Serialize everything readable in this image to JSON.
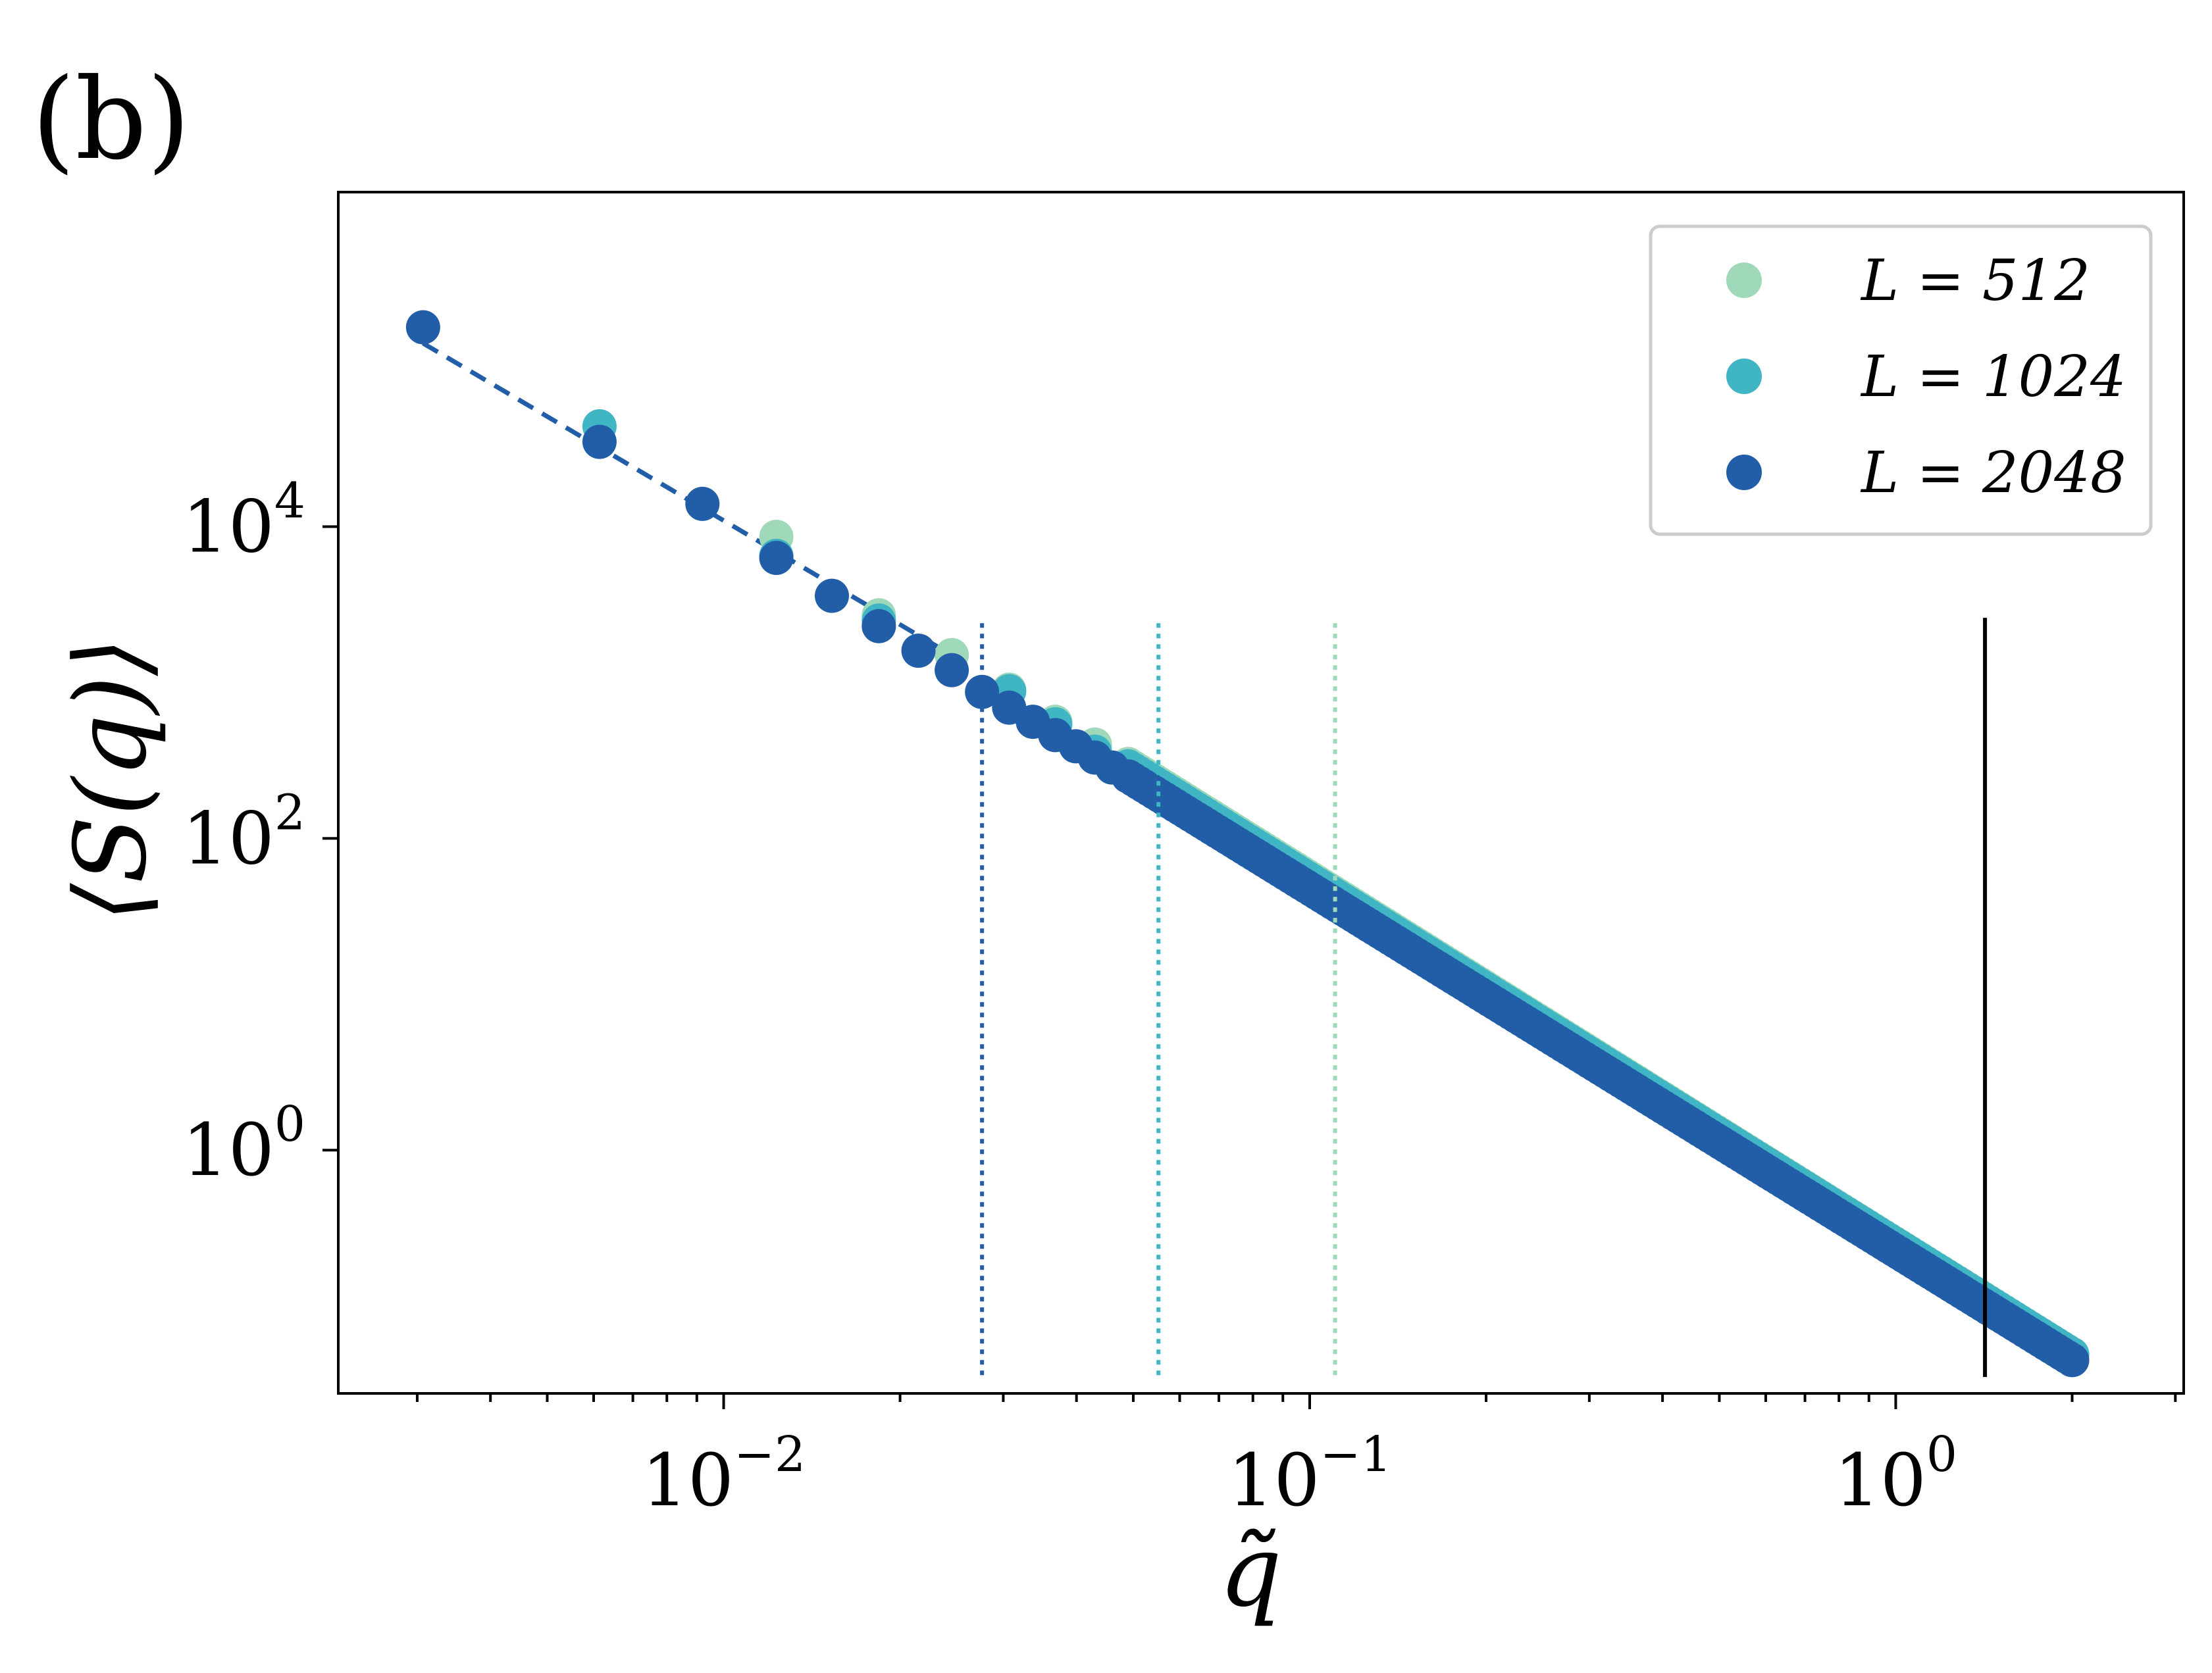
{
  "panel_label": "(b)",
  "colors": {
    "L512": "#9fd9b9",
    "L1024": "#40b5c4",
    "L2048": "#225ea8",
    "fit_line": "#225ea8",
    "marker_line": "#000000",
    "axes": "#000000"
  },
  "chart_data": {
    "type": "scatter",
    "xlabel": "q̃",
    "ylabel": "⟨S(q)⟩",
    "x_scale": "log",
    "y_scale": "log",
    "xlim": [
      0.0022,
      3.1
    ],
    "ylim": [
      0.0275,
      1400000.0
    ],
    "x_ticks": [
      {
        "value": 0.01,
        "base": "10",
        "exp": "−2"
      },
      {
        "value": 0.1,
        "base": "10",
        "exp": "−1"
      },
      {
        "value": 1,
        "base": "10",
        "exp": "0"
      }
    ],
    "y_ticks": [
      {
        "value": 1,
        "base": "10",
        "exp": "0"
      },
      {
        "value": 100,
        "base": "10",
        "exp": "2"
      },
      {
        "value": 10000,
        "base": "10",
        "exp": "4"
      }
    ],
    "legend": {
      "placement": "top-right",
      "entries": [
        {
          "label": "L = 512",
          "color_key": "L512"
        },
        {
          "label": "L = 1024",
          "color_key": "L1024"
        },
        {
          "label": "L = 2048",
          "color_key": "L2048"
        }
      ]
    },
    "series": [
      {
        "name": "L = 512",
        "color_key": "L512",
        "x_min": 0.0123,
        "x_max": 2.0,
        "y_at_x_min": 8600,
        "y_at_x_max": 0.049,
        "points": [
          [
            0.0123,
            8600
          ],
          [
            0.0184,
            2700
          ],
          [
            0.0245,
            1500
          ],
          [
            0.0307,
            900
          ],
          [
            0.0368,
            560
          ],
          [
            0.043,
            400
          ],
          [
            0.049,
            300
          ]
        ]
      },
      {
        "name": "L = 1024",
        "color_key": "L1024",
        "x_min": 0.00614,
        "x_max": 2.0,
        "y_at_x_min": 44000,
        "y_at_x_max": 0.049,
        "points": [
          [
            0.00614,
            44000
          ],
          [
            0.0123,
            6500
          ],
          [
            0.0184,
            2500
          ],
          [
            0.0307,
            880
          ],
          [
            0.0368,
            540
          ],
          [
            0.043,
            360
          ],
          [
            0.049,
            290
          ]
        ]
      },
      {
        "name": "L = 2048",
        "color_key": "L2048",
        "x_min": 0.00307,
        "x_max": 2.0,
        "y_at_x_min": 190000,
        "y_at_x_max": 0.045,
        "points": [
          [
            0.00307,
            190000
          ],
          [
            0.00614,
            35000
          ],
          [
            0.0092,
            14000
          ],
          [
            0.0123,
            6300
          ],
          [
            0.0153,
            3600
          ],
          [
            0.0184,
            2300
          ],
          [
            0.0215,
            1600
          ],
          [
            0.0245,
            1200
          ],
          [
            0.0276,
            870
          ],
          [
            0.0307,
            690
          ],
          [
            0.0337,
            560
          ],
          [
            0.0368,
            460
          ],
          [
            0.0399,
            390
          ],
          [
            0.043,
            330
          ],
          [
            0.046,
            285
          ],
          [
            0.049,
            250
          ]
        ]
      }
    ],
    "fit_line": {
      "x": [
        0.00307,
        0.0245
      ],
      "y": [
        150000,
        1500
      ],
      "style": "dashed"
    },
    "vlines": [
      {
        "x": 0.0276,
        "color_key": "L2048",
        "style": "dotted",
        "y_range": [
          0.036,
          2500
        ]
      },
      {
        "x": 0.0552,
        "color_key": "L1024",
        "style": "dotted",
        "y_range": [
          0.036,
          2500
        ]
      },
      {
        "x": 0.1105,
        "color_key": "L512",
        "style": "dotted",
        "y_range": [
          0.036,
          2500
        ]
      },
      {
        "x": 1.42,
        "color_key": "marker_line",
        "style": "solid",
        "y_range": [
          0.035,
          2600
        ]
      }
    ],
    "grid": false
  }
}
